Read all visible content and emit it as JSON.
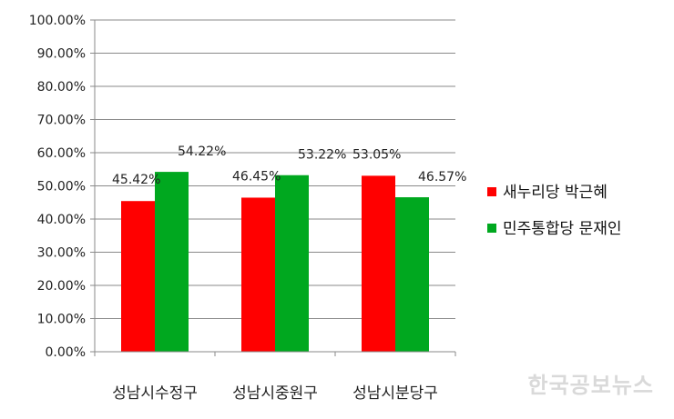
{
  "chart_data": {
    "type": "bar",
    "title": "",
    "xlabel": "",
    "ylabel": "",
    "ylim": [
      0,
      100
    ],
    "yticks": [
      "0.00%",
      "10.00%",
      "20.00%",
      "30.00%",
      "40.00%",
      "50.00%",
      "60.00%",
      "70.00%",
      "80.00%",
      "90.00%",
      "100.00%"
    ],
    "grid": true,
    "legend_position": "right",
    "categories": [
      "성남시수정구",
      "성남시중원구",
      "성남시분당구"
    ],
    "series": [
      {
        "name": "새누리당 박근혜",
        "color": "#ff0000",
        "values": [
          45.42,
          46.45,
          53.05
        ],
        "labels": [
          "45.42%",
          "46.45%",
          "53.05%"
        ]
      },
      {
        "name": "민주통합당 문재인",
        "color": "#00a81f",
        "values": [
          54.22,
          53.22,
          46.57
        ],
        "labels": [
          "54.22%",
          "53.22%",
          "46.57%"
        ]
      }
    ]
  },
  "watermark": "한국공보뉴스"
}
